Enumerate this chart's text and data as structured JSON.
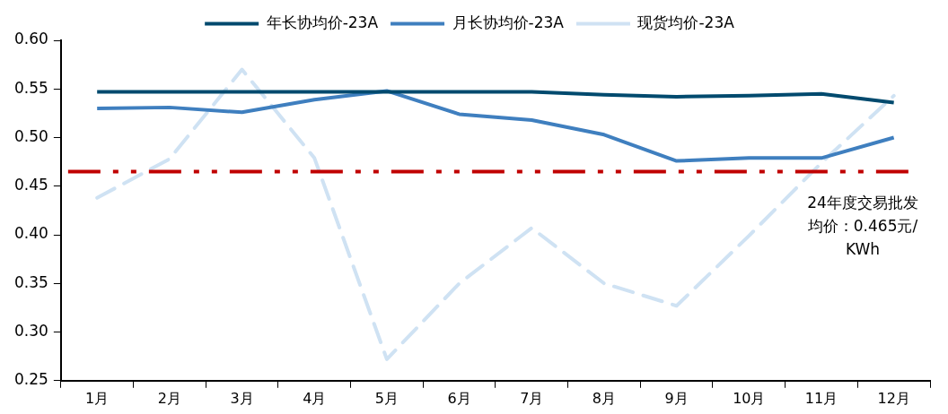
{
  "chart_data": {
    "type": "line",
    "categories": [
      "1月",
      "2月",
      "3月",
      "4月",
      "5月",
      "6月",
      "7月",
      "8月",
      "9月",
      "10月",
      "11月",
      "12月"
    ],
    "series": [
      {
        "name": "年长协均价-23A",
        "color": "#004a6e",
        "line_style": "solid",
        "values": [
          0.547,
          0.547,
          0.547,
          0.547,
          0.547,
          0.547,
          0.547,
          0.544,
          0.542,
          0.543,
          0.545,
          0.536
        ]
      },
      {
        "name": "月长协均价-23A",
        "color": "#3f7fbf",
        "line_style": "solid",
        "values": [
          0.53,
          0.531,
          0.526,
          0.539,
          0.548,
          0.524,
          0.518,
          0.503,
          0.476,
          0.479,
          0.479,
          0.5
        ]
      },
      {
        "name": "现货均价-23A",
        "color": "#cfe2f3",
        "line_style": "dashed",
        "values": [
          0.438,
          0.478,
          0.57,
          0.479,
          0.272,
          0.35,
          0.407,
          0.35,
          0.327,
          0.399,
          0.474,
          0.543
        ]
      }
    ],
    "ylim": [
      0.25,
      0.6
    ],
    "yticks": [
      {
        "value": 0.25,
        "label": "0.25"
      },
      {
        "value": 0.3,
        "label": "0.30"
      },
      {
        "value": 0.35,
        "label": "0.35"
      },
      {
        "value": 0.4,
        "label": "0.40"
      },
      {
        "value": 0.45,
        "label": "0.45"
      },
      {
        "value": 0.5,
        "label": "0.50"
      },
      {
        "value": 0.55,
        "label": "0.55"
      },
      {
        "value": 0.6,
        "label": "0.60"
      }
    ],
    "ref_lines": [
      {
        "axis": "y",
        "value": 0.465,
        "label": "24年度交易批发均价：0.465元/KWh",
        "color": "#c00000",
        "line_style": "dashdotdot"
      }
    ],
    "grid": false,
    "legend": "top",
    "marker": "none"
  }
}
